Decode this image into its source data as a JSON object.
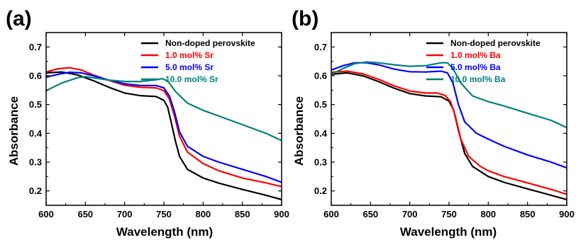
{
  "chart_data": [
    {
      "type": "line",
      "panel_label": "(a)",
      "xlabel": "Wavelength (nm)",
      "ylabel": "Absorbance",
      "xlim": [
        600,
        900
      ],
      "ylim": [
        0.15,
        0.75
      ],
      "x_ticks": [
        600,
        650,
        700,
        750,
        800,
        850,
        900
      ],
      "y_ticks": [
        0.2,
        0.3,
        0.4,
        0.5,
        0.6,
        0.7
      ],
      "legend_position": "top-right",
      "series": [
        {
          "name": "Non-doped perovskite",
          "color": "#000000",
          "points": [
            [
              600,
              0.61
            ],
            [
              620,
              0.613
            ],
            [
              640,
              0.603
            ],
            [
              660,
              0.583
            ],
            [
              680,
              0.56
            ],
            [
              700,
              0.54
            ],
            [
              720,
              0.531
            ],
            [
              740,
              0.528
            ],
            [
              750,
              0.515
            ],
            [
              755,
              0.49
            ],
            [
              760,
              0.43
            ],
            [
              765,
              0.37
            ],
            [
              770,
              0.32
            ],
            [
              780,
              0.275
            ],
            [
              800,
              0.245
            ],
            [
              820,
              0.227
            ],
            [
              850,
              0.205
            ],
            [
              880,
              0.185
            ],
            [
              900,
              0.17
            ]
          ]
        },
        {
          "name": "1.0 mol% Sr",
          "color": "#ff0000",
          "points": [
            [
              600,
              0.613
            ],
            [
              615,
              0.624
            ],
            [
              630,
              0.628
            ],
            [
              645,
              0.62
            ],
            [
              660,
              0.603
            ],
            [
              680,
              0.584
            ],
            [
              700,
              0.567
            ],
            [
              720,
              0.56
            ],
            [
              740,
              0.558
            ],
            [
              750,
              0.548
            ],
            [
              757,
              0.52
            ],
            [
              763,
              0.465
            ],
            [
              770,
              0.39
            ],
            [
              780,
              0.335
            ],
            [
              800,
              0.295
            ],
            [
              820,
              0.27
            ],
            [
              850,
              0.245
            ],
            [
              880,
              0.228
            ],
            [
              900,
              0.215
            ]
          ]
        },
        {
          "name": "5.0 mol% Sr",
          "color": "#0000ff",
          "points": [
            [
              600,
              0.595
            ],
            [
              615,
              0.605
            ],
            [
              630,
              0.612
            ],
            [
              645,
              0.61
            ],
            [
              660,
              0.6
            ],
            [
              680,
              0.585
            ],
            [
              700,
              0.572
            ],
            [
              720,
              0.566
            ],
            [
              740,
              0.566
            ],
            [
              750,
              0.558
            ],
            [
              757,
              0.53
            ],
            [
              763,
              0.48
            ],
            [
              770,
              0.405
            ],
            [
              780,
              0.355
            ],
            [
              800,
              0.32
            ],
            [
              820,
              0.3
            ],
            [
              850,
              0.275
            ],
            [
              880,
              0.25
            ],
            [
              900,
              0.23
            ]
          ]
        },
        {
          "name": "10.0 mol% Sr",
          "color": "#008080",
          "points": [
            [
              600,
              0.548
            ],
            [
              620,
              0.575
            ],
            [
              640,
              0.593
            ],
            [
              650,
              0.597
            ],
            [
              660,
              0.593
            ],
            [
              680,
              0.585
            ],
            [
              700,
              0.58
            ],
            [
              720,
              0.58
            ],
            [
              740,
              0.586
            ],
            [
              748,
              0.59
            ],
            [
              755,
              0.582
            ],
            [
              765,
              0.545
            ],
            [
              780,
              0.505
            ],
            [
              800,
              0.48
            ],
            [
              820,
              0.46
            ],
            [
              850,
              0.43
            ],
            [
              880,
              0.4
            ],
            [
              900,
              0.375
            ]
          ]
        }
      ]
    },
    {
      "type": "line",
      "panel_label": "(b)",
      "xlabel": "Wavelength (nm)",
      "ylabel": "Absorbance",
      "xlim": [
        600,
        900
      ],
      "ylim": [
        0.15,
        0.75
      ],
      "x_ticks": [
        600,
        650,
        700,
        750,
        800,
        850,
        900
      ],
      "y_ticks": [
        0.2,
        0.3,
        0.4,
        0.5,
        0.6,
        0.7
      ],
      "legend_position": "top-right",
      "series": [
        {
          "name": "Non-doped perovskite",
          "color": "#000000",
          "points": [
            [
              600,
              0.605
            ],
            [
              620,
              0.61
            ],
            [
              640,
              0.6
            ],
            [
              660,
              0.58
            ],
            [
              680,
              0.557
            ],
            [
              700,
              0.538
            ],
            [
              720,
              0.53
            ],
            [
              740,
              0.527
            ],
            [
              750,
              0.512
            ],
            [
              756,
              0.48
            ],
            [
              762,
              0.41
            ],
            [
              770,
              0.33
            ],
            [
              780,
              0.285
            ],
            [
              800,
              0.25
            ],
            [
              820,
              0.23
            ],
            [
              850,
              0.207
            ],
            [
              880,
              0.185
            ],
            [
              900,
              0.17
            ]
          ]
        },
        {
          "name": "1.0 mol% Ba",
          "color": "#ff0000",
          "points": [
            [
              600,
              0.612
            ],
            [
              620,
              0.616
            ],
            [
              640,
              0.607
            ],
            [
              660,
              0.588
            ],
            [
              680,
              0.565
            ],
            [
              700,
              0.547
            ],
            [
              720,
              0.54
            ],
            [
              735,
              0.54
            ],
            [
              745,
              0.532
            ],
            [
              752,
              0.51
            ],
            [
              758,
              0.46
            ],
            [
              765,
              0.38
            ],
            [
              775,
              0.32
            ],
            [
              790,
              0.285
            ],
            [
              800,
              0.27
            ],
            [
              820,
              0.25
            ],
            [
              850,
              0.228
            ],
            [
              880,
              0.205
            ],
            [
              900,
              0.188
            ]
          ]
        },
        {
          "name": "5.0 mol% Ba",
          "color": "#0000ff",
          "points": [
            [
              600,
              0.62
            ],
            [
              615,
              0.635
            ],
            [
              630,
              0.645
            ],
            [
              645,
              0.645
            ],
            [
              660,
              0.638
            ],
            [
              680,
              0.623
            ],
            [
              700,
              0.614
            ],
            [
              720,
              0.613
            ],
            [
              740,
              0.616
            ],
            [
              748,
              0.61
            ],
            [
              755,
              0.575
            ],
            [
              762,
              0.5
            ],
            [
              770,
              0.44
            ],
            [
              785,
              0.4
            ],
            [
              800,
              0.38
            ],
            [
              820,
              0.355
            ],
            [
              850,
              0.325
            ],
            [
              880,
              0.3
            ],
            [
              900,
              0.28
            ]
          ]
        },
        {
          "name": "10.0 mol% Ba",
          "color": "#008080",
          "points": [
            [
              600,
              0.605
            ],
            [
              615,
              0.625
            ],
            [
              630,
              0.642
            ],
            [
              645,
              0.648
            ],
            [
              660,
              0.645
            ],
            [
              680,
              0.638
            ],
            [
              700,
              0.633
            ],
            [
              720,
              0.635
            ],
            [
              740,
              0.645
            ],
            [
              748,
              0.645
            ],
            [
              755,
              0.625
            ],
            [
              765,
              0.575
            ],
            [
              780,
              0.53
            ],
            [
              800,
              0.51
            ],
            [
              820,
              0.495
            ],
            [
              850,
              0.47
            ],
            [
              880,
              0.445
            ],
            [
              900,
              0.42
            ]
          ]
        }
      ]
    }
  ]
}
